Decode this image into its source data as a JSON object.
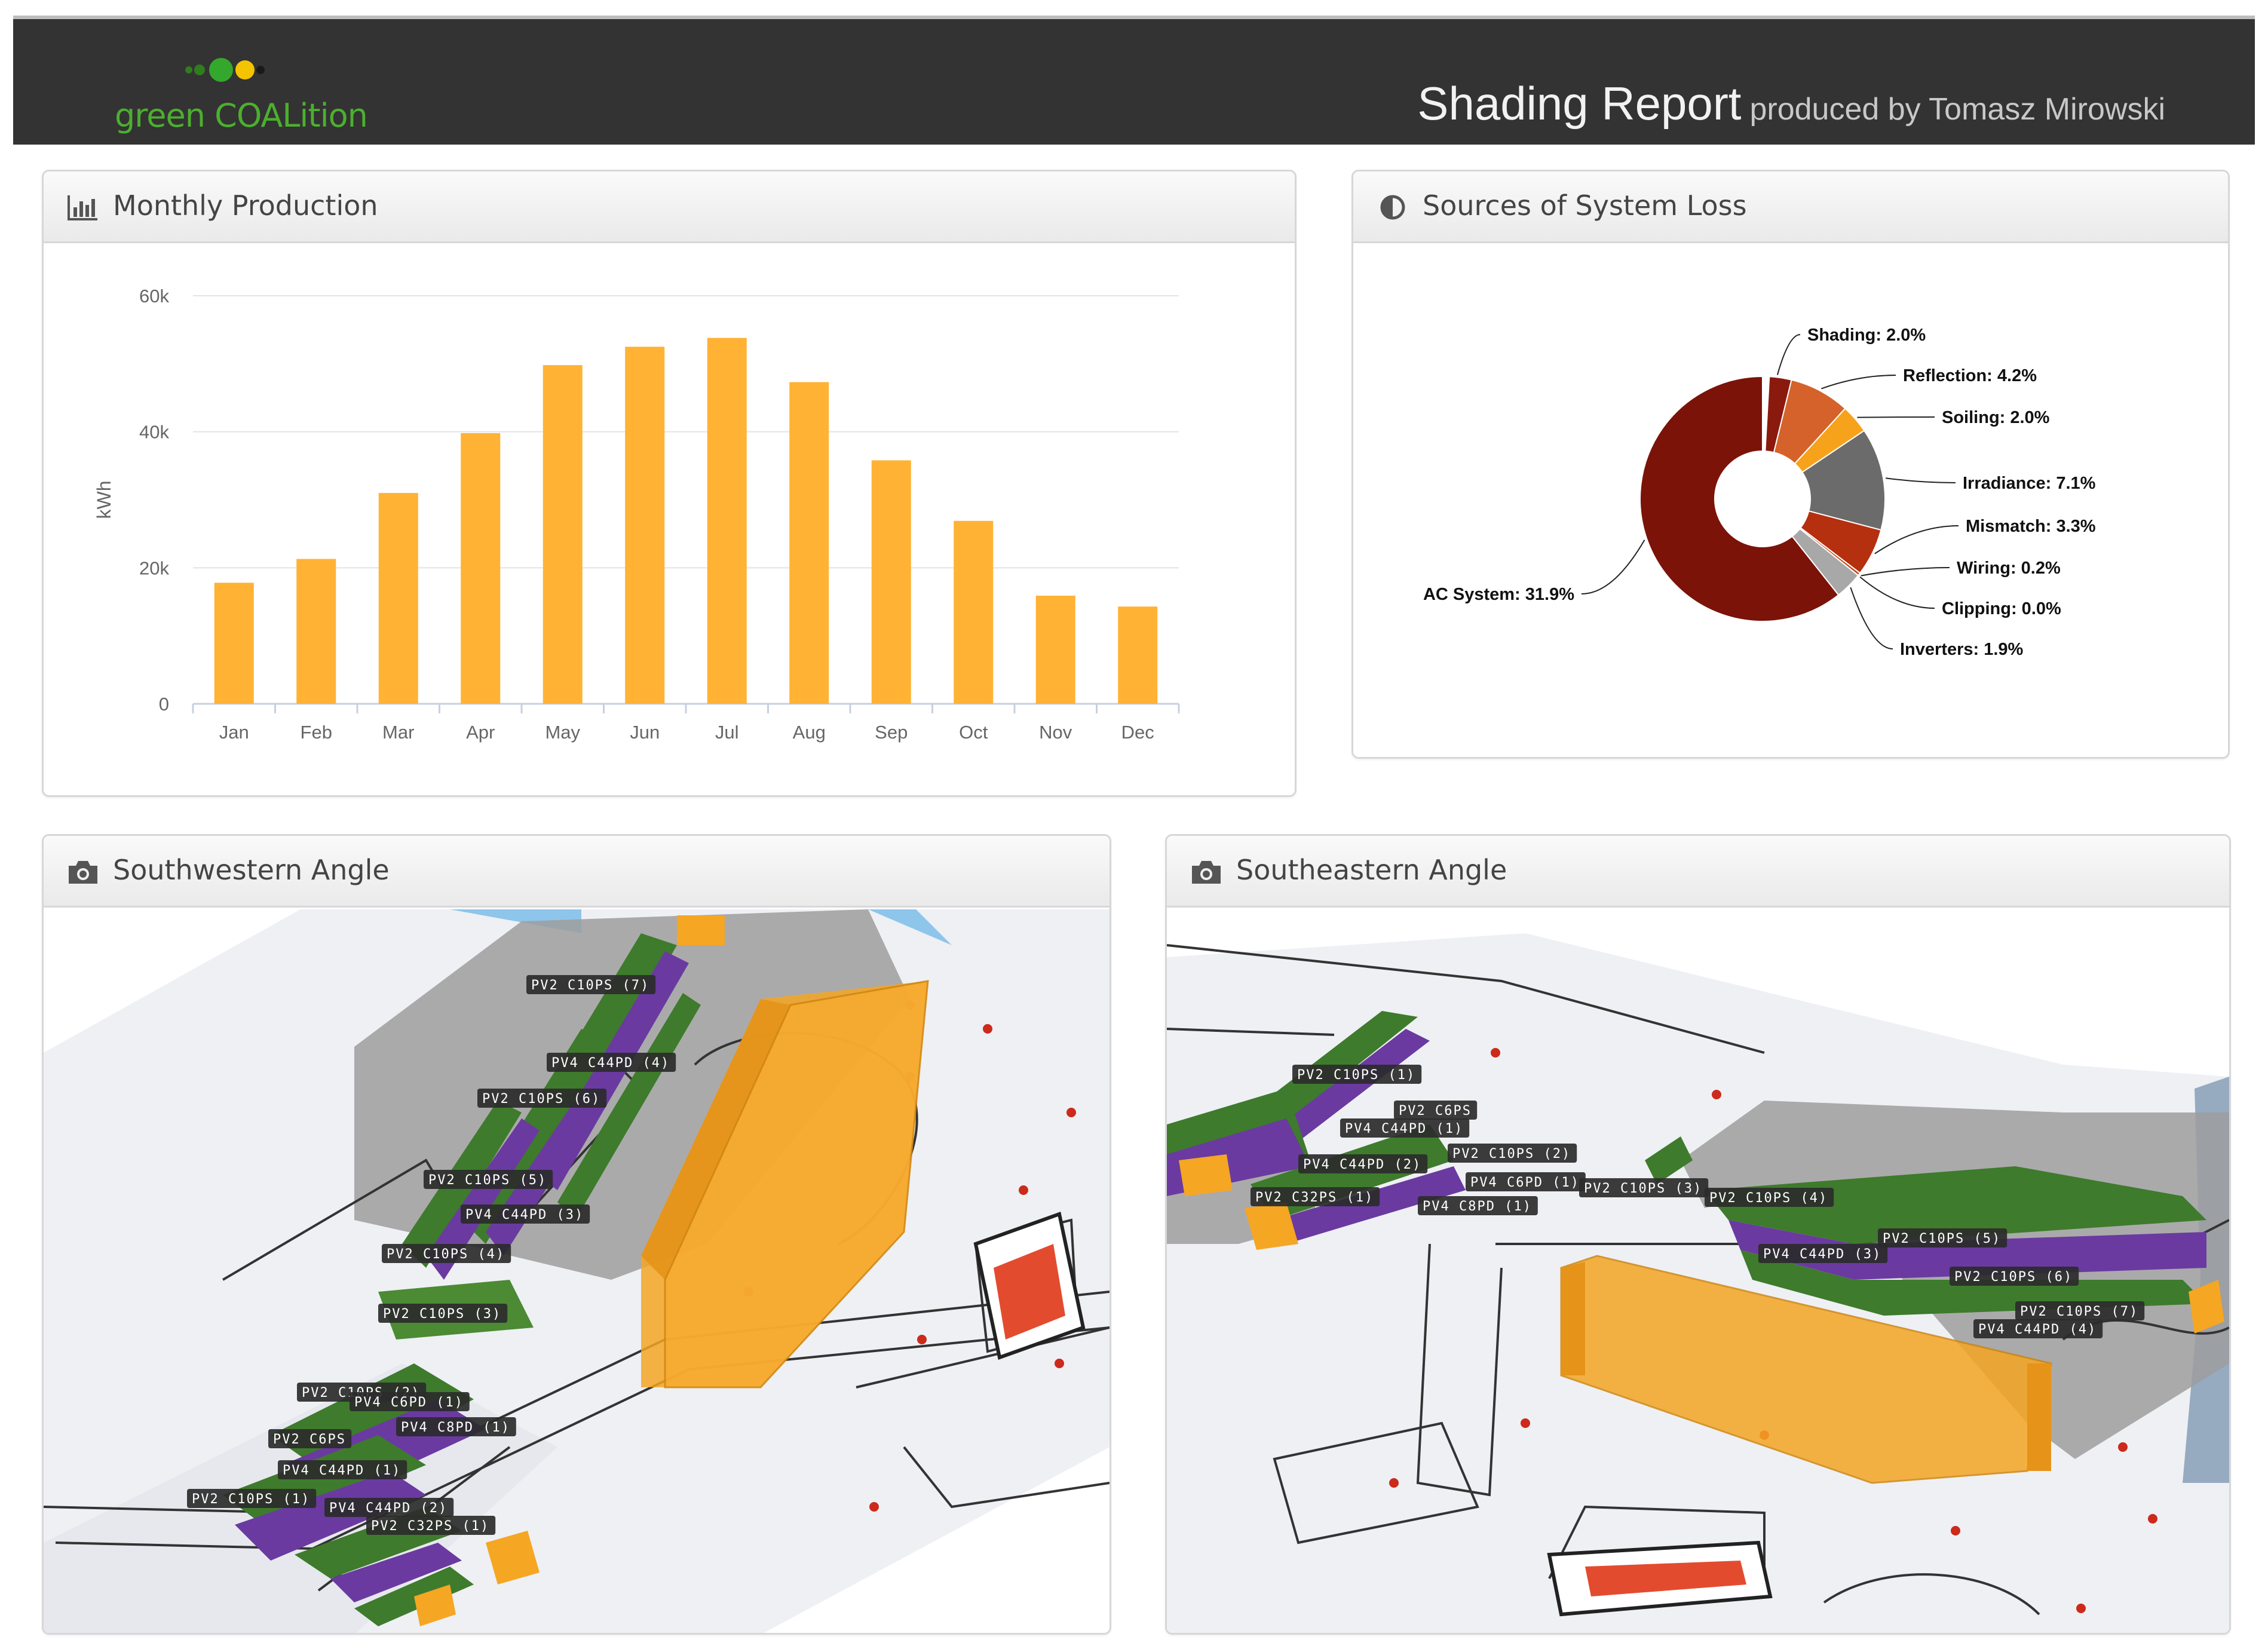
{
  "header": {
    "brand": "green COALition",
    "brand_colors": [
      "#2e7d1e",
      "#4caf2f",
      "#f5c400"
    ],
    "title": "Shading Report",
    "subtitle": "produced by Tomasz Mirowski",
    "background": "#333333"
  },
  "monthly_panel": {
    "title": "Monthly Production",
    "icon": "bar-chart-icon"
  },
  "loss_panel": {
    "title": "Sources of System Loss",
    "icon": "half-circle-icon"
  },
  "sw_panel": {
    "title": "Southwestern Angle",
    "icon": "camera-icon",
    "labels": [
      "PV2 C10PS (7)",
      "PV4 C44PD (4)",
      "PV2 C10PS (6)",
      "PV2 C10PS (5)",
      "PV4 C44PD (3)",
      "PV2 C10PS (4)",
      "PV2 C10PS (3)",
      "PV2 C10PS (2)",
      "PV4 C6PD (1)",
      "PV4 C8PD (1)",
      "PV2 C6PS",
      "PV4 C44PD (1)",
      "PV2 C10PS (1)",
      "PV4 C44PD (2)",
      "PV2 C32PS (1)"
    ]
  },
  "se_panel": {
    "title": "Southeastern Angle",
    "icon": "camera-icon",
    "labels": [
      "PV2 C10PS (1)",
      "PV2 C6PS",
      "PV4 C44PD (1)",
      "PV2 C10PS (2)",
      "PV4 C44PD (2)",
      "PV4 C6PD (1)",
      "PV2 C10PS (3)",
      "PV2 C32PS (1)",
      "PV4 C8PD (1)",
      "PV2 C10PS (4)",
      "PV2 C10PS (5)",
      "PV4 C44PD (3)",
      "PV2 C10PS (6)",
      "PV2 C10PS (7)",
      "PV4 C44PD (4)"
    ]
  },
  "chart_data": [
    {
      "type": "bar",
      "categories": [
        "Jan",
        "Feb",
        "Mar",
        "Apr",
        "May",
        "Jun",
        "Jul",
        "Aug",
        "Sep",
        "Oct",
        "Nov",
        "Dec"
      ],
      "values": [
        17800,
        21300,
        31000,
        39800,
        49800,
        52500,
        53800,
        47300,
        35800,
        26900,
        15900,
        14300
      ],
      "ylabel": "kWh",
      "ylim": [
        0,
        60000
      ],
      "yticks": [
        "0",
        "20k",
        "40k",
        "60k"
      ],
      "grid": true,
      "color": "#ffb234"
    },
    {
      "type": "pie",
      "donut": true,
      "slices": [
        {
          "label": "Shading: 2.0%",
          "value": 2.0,
          "color": "#8b1a0e"
        },
        {
          "label": "Reflection: 4.2%",
          "value": 4.2,
          "color": "#d4622a"
        },
        {
          "label": "Soiling: 2.0%",
          "value": 2.0,
          "color": "#f7a21b"
        },
        {
          "label": "Irradiance: 7.1%",
          "value": 7.1,
          "color": "#6b6b6b"
        },
        {
          "label": "Mismatch: 3.3%",
          "value": 3.3,
          "color": "#b5300f"
        },
        {
          "label": "Wiring: 0.2%",
          "value": 0.2,
          "color": "#c44a1a"
        },
        {
          "label": "Clipping: 0.0%",
          "value": 0.0,
          "color": "#f2a33a"
        },
        {
          "label": "Inverters: 1.9%",
          "value": 1.9,
          "color": "#a8a8a8"
        },
        {
          "label": "AC System: 31.9%",
          "value": 31.9,
          "color": "#7b1309"
        }
      ]
    }
  ]
}
